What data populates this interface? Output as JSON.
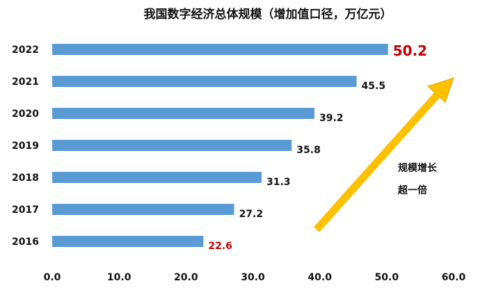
{
  "chart_data": {
    "type": "bar",
    "orientation": "horizontal",
    "title": "我国数字经济总体规模（增加值口径，万亿元）",
    "categories": [
      "2022",
      "2021",
      "2020",
      "2019",
      "2018",
      "2017",
      "2016"
    ],
    "values": [
      50.2,
      45.5,
      39.2,
      35.8,
      31.3,
      27.2,
      22.6
    ],
    "value_labels": [
      "50.2",
      "45.5",
      "39.2",
      "35.8",
      "31.3",
      "27.2",
      "22.6"
    ],
    "highlight_categories": [
      "2022",
      "2016"
    ],
    "xlim": [
      0,
      60
    ],
    "xticks": [
      "0.0",
      "10.0",
      "20.0",
      "30.0",
      "40.0",
      "50.0",
      "60.0"
    ],
    "grid": false,
    "bar_color": "#5b9bd5",
    "highlight_color": "#c00000",
    "annotation": {
      "lines": [
        "规模增长",
        "超一倍"
      ],
      "arrow_color": "#ffc000",
      "arrow_outline": "#e0a800"
    }
  }
}
